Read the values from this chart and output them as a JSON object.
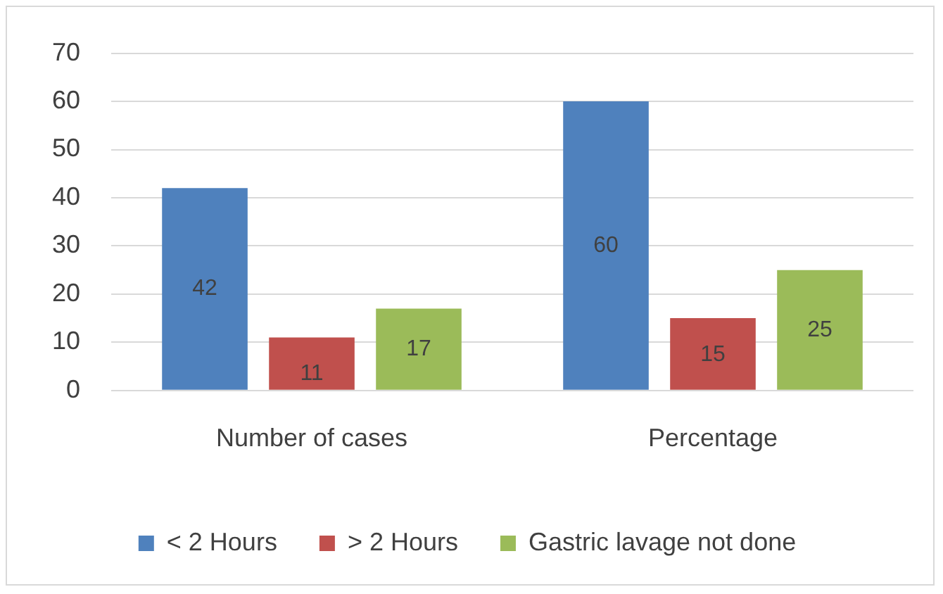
{
  "chart_data": {
    "type": "bar",
    "categories": [
      "Number of cases",
      "Percentage"
    ],
    "series": [
      {
        "name": "< 2 Hours",
        "color": "#4f81bd",
        "values": [
          42,
          60
        ]
      },
      {
        "name": "> 2 Hours",
        "color": "#c0504d",
        "values": [
          11,
          15
        ]
      },
      {
        "name": "Gastric lavage not done",
        "color": "#9bbb59",
        "values": [
          17,
          25
        ]
      }
    ],
    "ylim": [
      0,
      70
    ],
    "yticks": [
      0,
      10,
      20,
      30,
      40,
      50,
      60,
      70
    ],
    "grid": "y",
    "legend": "bottom",
    "data_labels": true
  }
}
